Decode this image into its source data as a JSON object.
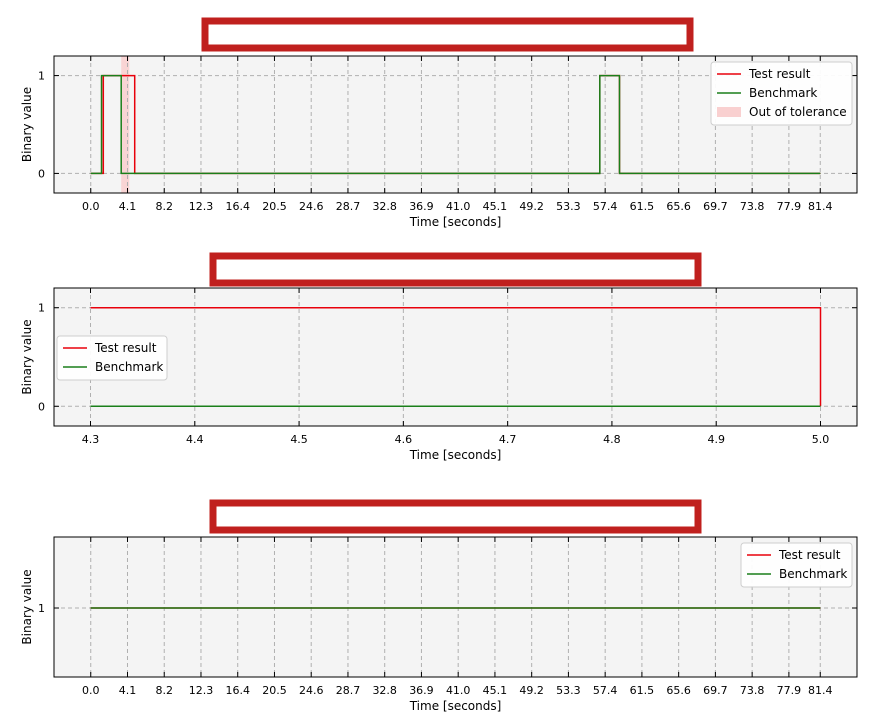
{
  "chart_data": [
    {
      "type": "line",
      "title": "",
      "xlabel": "Time [seconds]",
      "ylabel": "Binary value",
      "xlim": [
        -4.1,
        85.5
      ],
      "ylim": [
        -0.2,
        1.2
      ],
      "grid": true,
      "xticks": [
        0.0,
        4.1,
        8.2,
        12.3,
        16.4,
        20.5,
        24.6,
        28.7,
        32.8,
        36.9,
        41.0,
        45.1,
        49.2,
        53.3,
        57.4,
        61.5,
        65.6,
        69.7,
        73.8,
        77.9,
        81.4
      ],
      "xtick_labels": [
        "0.0",
        "4.1",
        "8.2",
        "12.3",
        "16.4",
        "20.5",
        "24.6",
        "28.7",
        "32.8",
        "36.9",
        "41.0",
        "45.1",
        "49.2",
        "53.3",
        "57.4",
        "61.5",
        "65.6",
        "69.7",
        "73.8",
        "77.9",
        "81.4"
      ],
      "yticks": [
        0,
        1
      ],
      "ytick_labels": [
        "0",
        "1"
      ],
      "legend_position": "top-right",
      "series": [
        {
          "name": "Test result",
          "color": "#e8000b",
          "step": true,
          "x": [
            0.0,
            1.4,
            1.4,
            4.9,
            4.9,
            56.8,
            56.8,
            59.0,
            59.0,
            81.4
          ],
          "y": [
            0,
            0,
            1,
            1,
            0,
            0,
            1,
            1,
            0,
            0
          ]
        },
        {
          "name": "Benchmark",
          "color": "#1a7f1a",
          "step": true,
          "x": [
            0.0,
            1.2,
            1.2,
            3.4,
            3.4,
            56.8,
            56.8,
            59.0,
            59.0,
            81.4
          ],
          "y": [
            0,
            0,
            1,
            1,
            0,
            0,
            1,
            1,
            0,
            0
          ]
        }
      ],
      "shaded_regions": [
        {
          "name": "Out of tolerance",
          "x0": 3.4,
          "x1": 4.3,
          "color": "#f9d0d0"
        }
      ]
    },
    {
      "type": "line",
      "title": "",
      "xlabel": "Time [seconds]",
      "ylabel": "Binary value",
      "xlim": [
        4.265,
        5.035
      ],
      "ylim": [
        -0.2,
        1.2
      ],
      "grid": true,
      "xticks": [
        4.3,
        4.4,
        4.5,
        4.6,
        4.7,
        4.8,
        4.9,
        5.0
      ],
      "xtick_labels": [
        "4.3",
        "4.4",
        "4.5",
        "4.6",
        "4.7",
        "4.8",
        "4.9",
        "5.0"
      ],
      "yticks": [
        0,
        1
      ],
      "ytick_labels": [
        "0",
        "1"
      ],
      "legend_position": "center-left",
      "series": [
        {
          "name": "Test result",
          "color": "#e8000b",
          "step": true,
          "x": [
            4.3,
            5.0,
            5.0
          ],
          "y": [
            1,
            1,
            0
          ]
        },
        {
          "name": "Benchmark",
          "color": "#1a7f1a",
          "step": true,
          "x": [
            4.3,
            5.0
          ],
          "y": [
            0,
            0
          ]
        }
      ],
      "shaded_regions": []
    },
    {
      "type": "line",
      "title": "",
      "xlabel": "Time [seconds]",
      "ylabel": "Binary value",
      "xlim": [
        -4.1,
        85.5
      ],
      "ylim": [
        0.32,
        1.7
      ],
      "grid": true,
      "xticks": [
        0.0,
        4.1,
        8.2,
        12.3,
        16.4,
        20.5,
        24.6,
        28.7,
        32.8,
        36.9,
        41.0,
        45.1,
        49.2,
        53.3,
        57.4,
        61.5,
        65.6,
        69.7,
        73.8,
        77.9,
        81.4
      ],
      "xtick_labels": [
        "0.0",
        "4.1",
        "8.2",
        "12.3",
        "16.4",
        "20.5",
        "24.6",
        "28.7",
        "32.8",
        "36.9",
        "41.0",
        "45.1",
        "49.2",
        "53.3",
        "57.4",
        "61.5",
        "65.6",
        "69.7",
        "73.8",
        "77.9",
        "81.4"
      ],
      "yticks": [
        1
      ],
      "ytick_labels": [
        "1"
      ],
      "legend_position": "top-right",
      "series": [
        {
          "name": "Test result",
          "color": "#e8000b",
          "step": true,
          "x": [
            0.0,
            81.4
          ],
          "y": [
            1,
            1
          ]
        },
        {
          "name": "Benchmark",
          "color": "#1a7f1a",
          "step": true,
          "x": [
            0.0,
            81.4
          ],
          "y": [
            1,
            1
          ]
        }
      ],
      "shaded_regions": []
    }
  ]
}
